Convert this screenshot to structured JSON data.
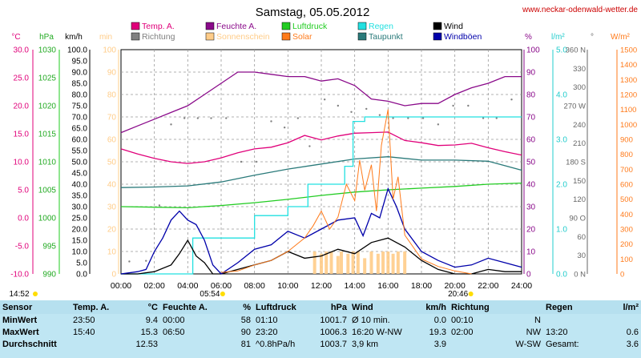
{
  "header": {
    "title": "Samstag, 05.05.2012",
    "site": "www.neckar-odenwald-wetter.de"
  },
  "legend": [
    {
      "label": "Temp. A.",
      "color": "#e0007a"
    },
    {
      "label": "Feuchte A.",
      "color": "#8a0a8a"
    },
    {
      "label": "Luftdruck",
      "color": "#22cc22"
    },
    {
      "label": "Regen",
      "color": "#22e0e0"
    },
    {
      "label": "Wind",
      "color": "#000000"
    },
    {
      "label": "Richtung",
      "color": "#808080"
    },
    {
      "label": "Sonnenschein",
      "color": "#ffcc88"
    },
    {
      "label": "Solar",
      "color": "#ff7a1a"
    },
    {
      "label": "Taupunkt",
      "color": "#2a7a7a"
    },
    {
      "label": "Windböen",
      "color": "#0000aa"
    }
  ],
  "axes": {
    "temp": {
      "unit": "°C",
      "ticks": [
        "30.0",
        "25.0",
        "20.0",
        "15.0",
        "10.0",
        "5.0",
        "0.0",
        "-5.0",
        "-10.0"
      ],
      "color": "#e0007a"
    },
    "pressure": {
      "unit": "hPa",
      "ticks": [
        "1030",
        "1025",
        "1020",
        "1015",
        "1010",
        "1005",
        "1000",
        "995",
        "990"
      ],
      "color": "#22aa22"
    },
    "wind": {
      "unit": "km/h",
      "ticks": [
        "100.0",
        "95.0",
        "90.0",
        "85.0",
        "80.0",
        "75.0",
        "70.0",
        "65.0",
        "60.0",
        "55.0",
        "50.0",
        "45.0",
        "40.0",
        "35.0",
        "30.0",
        "25.0",
        "20.0",
        "15.0",
        "10.0",
        "5.0",
        "0.0"
      ],
      "color": "#000000"
    },
    "sun": {
      "unit": "min",
      "ticks": [
        "100",
        "90",
        "80",
        "70",
        "60",
        "50",
        "40",
        "30",
        "20",
        "10",
        "0"
      ],
      "color": "#ffcc88"
    },
    "humidity": {
      "unit": "%",
      "ticks": [
        "100",
        "90",
        "80",
        "70",
        "60",
        "50",
        "40",
        "30",
        "20",
        "10",
        "0"
      ],
      "color": "#8a0a8a"
    },
    "rain": {
      "unit": "l/m²",
      "ticks": [
        "5.0",
        "4.0",
        "3.0",
        "2.0",
        "1.0",
        "0.0"
      ],
      "color": "#22cccc"
    },
    "direction": {
      "unit": "°",
      "ticks": [
        "360 N",
        "330",
        "300",
        "270 W",
        "240",
        "210",
        "180 S",
        "150",
        "120",
        "90 O",
        "60",
        "30",
        "0 N"
      ],
      "color": "#666666"
    },
    "solar": {
      "unit": "W/m²",
      "ticks": [
        "1500",
        "1400",
        "1300",
        "1200",
        "1100",
        "1000",
        "900",
        "800",
        "700",
        "600",
        "500",
        "400",
        "300",
        "200",
        "100",
        "0"
      ],
      "color": "#ff7a1a"
    },
    "time": [
      "00:00",
      "02:00",
      "04:00",
      "06:00",
      "08:00",
      "10:00",
      "12:00",
      "14:00",
      "16:00",
      "18:00",
      "20:00",
      "22:00",
      "24:00"
    ]
  },
  "sun_times": {
    "sunrise": "05:54",
    "sunset": "20:46",
    "extra": "14:52"
  },
  "chart_data": {
    "type": "line",
    "x_label": "",
    "xlim": [
      0,
      24
    ],
    "series": [
      {
        "name": "Temp. A.",
        "axis": "temp",
        "color": "#e0007a",
        "x": [
          0,
          1,
          2,
          3,
          4,
          5,
          6,
          7,
          8,
          9,
          10,
          11,
          12,
          13,
          14,
          15,
          16,
          17,
          18,
          19,
          20,
          21,
          22,
          23,
          24
        ],
        "y": [
          12.3,
          11.4,
          10.6,
          10.0,
          9.7,
          10.0,
          10.7,
          11.6,
          12.3,
          12.6,
          13.4,
          14.7,
          13.9,
          14.6,
          15.1,
          15.2,
          15.3,
          13.8,
          13.4,
          12.9,
          13.0,
          13.3,
          12.5,
          11.8,
          11.2
        ]
      },
      {
        "name": "Feuchte A.",
        "axis": "humidity",
        "color": "#8a0a8a",
        "x": [
          0,
          1,
          2,
          3,
          4,
          5,
          6,
          7,
          8,
          9,
          10,
          11,
          12,
          13,
          14,
          15,
          16,
          17,
          18,
          19,
          20,
          21,
          22,
          23,
          24
        ],
        "y": [
          63,
          66,
          69,
          72,
          75,
          80,
          85,
          90,
          90,
          89,
          88,
          88,
          86,
          87,
          84,
          78,
          77,
          75,
          76,
          76,
          80,
          83,
          85,
          88,
          88
        ]
      },
      {
        "name": "Luftdruck",
        "axis": "pressure",
        "color": "#22cc22",
        "x": [
          0,
          2,
          4,
          6,
          8,
          10,
          12,
          14,
          16,
          18,
          20,
          22,
          24
        ],
        "y": [
          1002.0,
          1001.9,
          1001.8,
          1002.2,
          1002.7,
          1003.3,
          1004.0,
          1004.6,
          1005.0,
          1005.3,
          1005.6,
          1006.0,
          1006.2
        ]
      },
      {
        "name": "Taupunkt",
        "axis": "temp",
        "color": "#2a7a7a",
        "x": [
          0,
          2,
          4,
          6,
          8,
          10,
          12,
          14,
          16,
          18,
          20,
          22,
          24
        ],
        "y": [
          5.4,
          5.5,
          5.7,
          6.4,
          7.6,
          8.7,
          9.6,
          10.5,
          10.9,
          10.3,
          10.3,
          10.1,
          8.5
        ]
      },
      {
        "name": "Regen",
        "axis": "rain",
        "color": "#22e0e0",
        "x": [
          0,
          4.3,
          4.3,
          6.2,
          6.2,
          7.0,
          7.0,
          8.0,
          8.0,
          10.0,
          10.0,
          11.2,
          11.2,
          13.0,
          13.0,
          13.4,
          13.4,
          13.9,
          13.9,
          14.6,
          14.6,
          24
        ],
        "y": [
          0,
          0,
          0.8,
          0.8,
          0.8,
          0.8,
          0.8,
          0.8,
          1.3,
          1.3,
          1.5,
          1.5,
          2.0,
          2.0,
          2.0,
          2.0,
          2.4,
          2.4,
          3.4,
          3.4,
          3.5,
          3.5
        ]
      },
      {
        "name": "Wind",
        "axis": "wind",
        "color": "#000000",
        "x": [
          0,
          1,
          2,
          3,
          3.5,
          4,
          4.5,
          5,
          5.5,
          6,
          7,
          8,
          9,
          10,
          11,
          12,
          13,
          14,
          15,
          16,
          17,
          18,
          19,
          20,
          21,
          22,
          23,
          24
        ],
        "y": [
          0,
          0,
          1,
          4,
          9,
          15,
          8,
          5,
          0,
          0,
          2,
          4,
          6,
          10,
          7,
          8,
          11,
          9,
          14,
          16,
          12,
          6,
          2,
          0,
          0,
          2,
          1,
          1
        ]
      },
      {
        "name": "Windböen",
        "axis": "wind",
        "color": "#0000aa",
        "x": [
          0,
          1,
          1.5,
          2,
          2.5,
          3,
          3.5,
          4,
          4.5,
          5,
          5.5,
          6,
          7,
          8,
          9,
          10,
          11,
          12,
          13,
          14,
          14.5,
          15,
          15.5,
          16,
          16.5,
          17,
          18,
          19,
          20,
          21,
          22,
          23,
          24
        ],
        "y": [
          0,
          1,
          2,
          10,
          16,
          24,
          28,
          24,
          22,
          15,
          4,
          0,
          5,
          11,
          13,
          19,
          16,
          20,
          24,
          25,
          17,
          27,
          25,
          38,
          30,
          20,
          10,
          6,
          3,
          4,
          7,
          5,
          3
        ]
      },
      {
        "name": "Solar",
        "axis": "solar",
        "color": "#ff7a1a",
        "x": [
          6,
          7,
          8,
          9,
          10,
          11,
          11.5,
          12,
          12.5,
          13,
          13.5,
          14,
          14.3,
          14.6,
          15,
          15.3,
          15.6,
          16,
          16.3,
          16.6,
          17,
          17.5,
          18,
          19,
          20,
          21
        ],
        "y": [
          10,
          20,
          60,
          90,
          150,
          240,
          320,
          420,
          300,
          380,
          600,
          490,
          760,
          560,
          730,
          420,
          860,
          1100,
          500,
          650,
          260,
          180,
          100,
          50,
          20,
          0
        ]
      }
    ],
    "sunshine": {
      "x": [
        11.6,
        12.0,
        12.3,
        12.6,
        13.0,
        13.2,
        13.6,
        13.9,
        14.2,
        14.6,
        15.0,
        15.4,
        15.7,
        16.0,
        16.3,
        16.6,
        17.0
      ],
      "y": [
        10,
        9,
        10,
        10,
        8,
        10,
        9,
        10,
        10,
        7,
        10,
        9,
        10,
        10,
        9,
        10,
        10
      ]
    },
    "direction": {
      "x": [
        0.5,
        1.5,
        2.3,
        3.0,
        3.8,
        4.6,
        5.4,
        6.3,
        7.2,
        8.1,
        9.0,
        9.8,
        10.6,
        11.3,
        12.2,
        13.0,
        13.8,
        14.7,
        15.5,
        16.3,
        17.2,
        18.1,
        19.0,
        19.9,
        20.8,
        21.7,
        22.5,
        23.4
      ],
      "y": [
        20,
        21,
        110,
        240,
        250,
        250,
        250,
        250,
        180,
        180,
        245,
        235,
        250,
        205,
        280,
        270,
        260,
        265,
        255,
        250,
        250,
        250,
        240,
        270,
        270,
        250,
        250,
        280
      ]
    }
  },
  "stats": {
    "headers": [
      "Sensor",
      "Temp. A.",
      "°C",
      "Feuchte A.",
      "%",
      "Luftdruck",
      "hPa",
      "Wind",
      "km/h",
      "Richtung",
      "",
      "Regen",
      "l/m²"
    ],
    "rows": [
      [
        "MinWert",
        "23:50",
        "9.4",
        "00:00",
        "58",
        "01:10",
        "1001.7",
        "Ø 10 min.",
        "0.0",
        "00:10",
        "N",
        "",
        ""
      ],
      [
        "MaxWert",
        "15:40",
        "15.3",
        "06:50",
        "90",
        "23:20",
        "1006.3",
        "16:20   W-NW",
        "19.3",
        "02:00",
        "NW",
        "13:20",
        "0.6"
      ],
      [
        "Durchschnitt",
        "",
        "12.53",
        "",
        "81",
        "^0.8hPa/h",
        "1003.7",
        "3,9 km",
        "3.9",
        "",
        "W-SW",
        "Gesamt:",
        "3.6"
      ]
    ]
  }
}
